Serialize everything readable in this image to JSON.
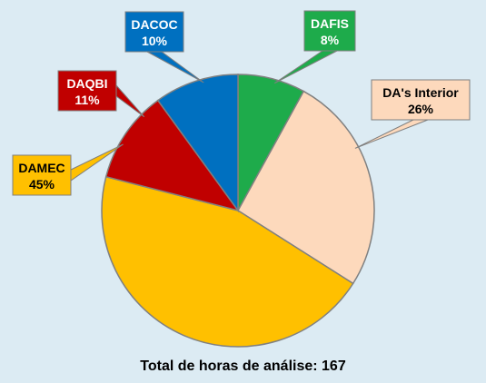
{
  "chart_data": {
    "type": "pie",
    "title": "",
    "slices": [
      {
        "label": "DAFIS",
        "value": 8,
        "pct": "8%",
        "color": "#1eab4b",
        "label_color": "#ffffff"
      },
      {
        "label": "DA's Interior",
        "value": 26,
        "pct": "26%",
        "color": "#fdd9bc",
        "label_color": "#000000"
      },
      {
        "label": "DAMEC",
        "value": 45,
        "pct": "45%",
        "color": "#ffc000",
        "label_color": "#000000"
      },
      {
        "label": "DAQBI",
        "value": 11,
        "pct": "11%",
        "color": "#c00000",
        "label_color": "#ffffff"
      },
      {
        "label": "DACOC",
        "value": 10,
        "pct": "10%",
        "color": "#0070c0",
        "label_color": "#ffffff"
      }
    ],
    "start_angle_deg": 0,
    "direction": "clockwise",
    "slice_border_color": "#808080",
    "legend": "none (callout labels)"
  },
  "footer": {
    "caption": "Total de horas de análise: 167"
  }
}
